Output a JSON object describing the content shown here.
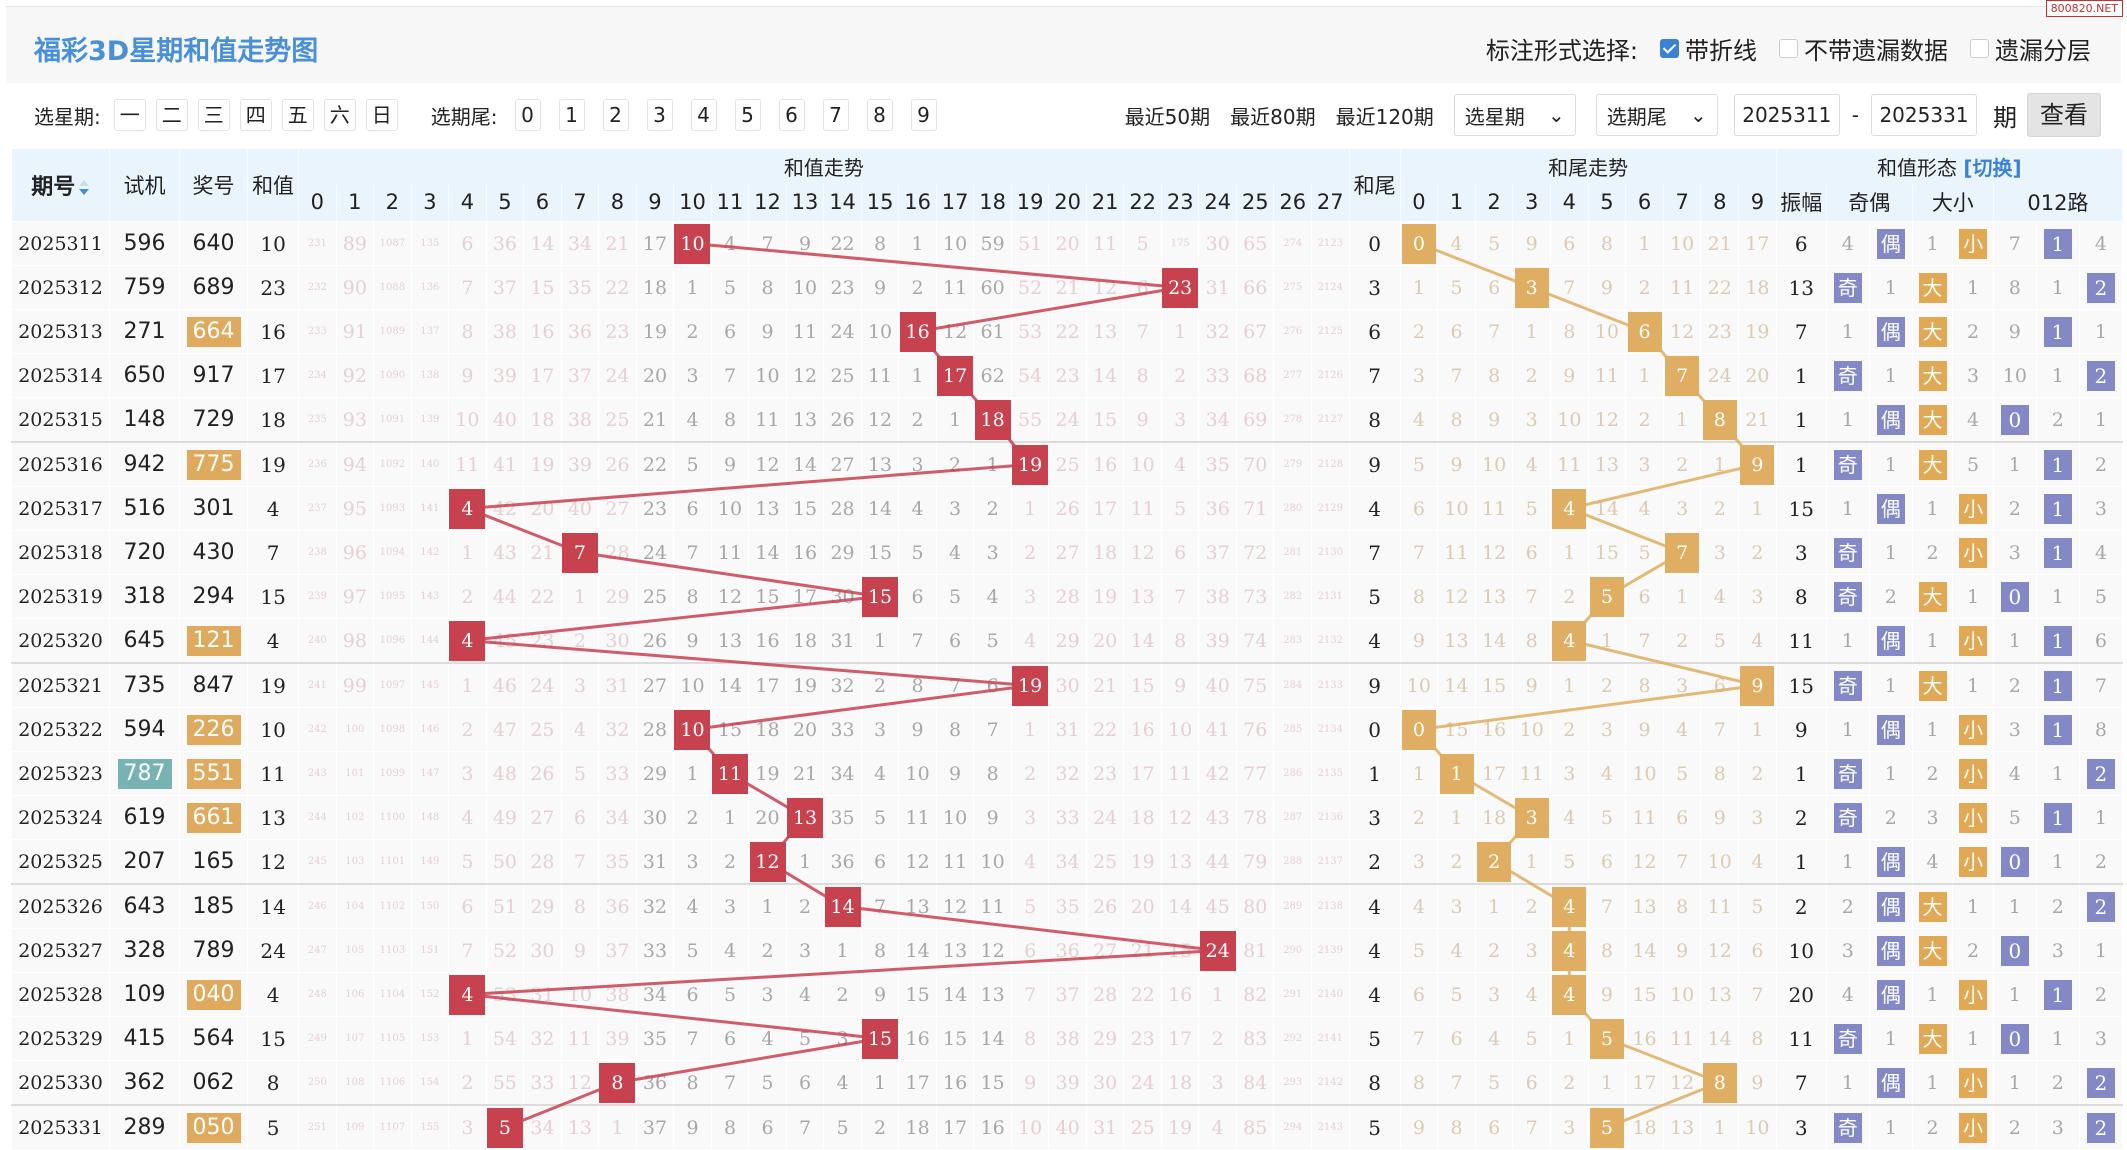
{
  "title": "福彩3D星期和值走势图",
  "watermark": "800820.NET",
  "mark_options": {
    "label": "标注形式选择:",
    "options": [
      {
        "label": "带折线",
        "checked": true
      },
      {
        "label": "不带遗漏数据",
        "checked": false
      },
      {
        "label": "遗漏分层",
        "checked": false
      }
    ]
  },
  "toolbar": {
    "weekday_label": "选星期:",
    "weekdays": [
      "一",
      "二",
      "三",
      "四",
      "五",
      "六",
      "日"
    ],
    "tail_label": "选期尾:",
    "tails": [
      "0",
      "1",
      "2",
      "3",
      "4",
      "5",
      "6",
      "7",
      "8",
      "9"
    ],
    "recent": [
      "最近50期",
      "最近80期",
      "最近120期"
    ],
    "weekday_select": "选星期",
    "tail_select": "选期尾",
    "from_issue": "2025311",
    "dash": "-",
    "to_issue": "2025331",
    "period_suffix": "期",
    "view_button": "查看"
  },
  "header": {
    "issue": "期号",
    "test": "试机",
    "draw": "奖号",
    "sum": "和值",
    "sum_trend": "和值走势",
    "tail": "和尾",
    "tail_trend": "和尾走势",
    "form": "和值形态",
    "switch": "[切换]",
    "amp": "振幅",
    "oe": "奇偶",
    "bs": "大小",
    "r012": "012路",
    "sum_cols": [
      "0",
      "1",
      "2",
      "3",
      "4",
      "5",
      "6",
      "7",
      "8",
      "9",
      "10",
      "11",
      "12",
      "13",
      "14",
      "15",
      "16",
      "17",
      "18",
      "19",
      "20",
      "21",
      "22",
      "23",
      "24",
      "25",
      "26",
      "27"
    ],
    "tail_cols": [
      "0",
      "1",
      "2",
      "3",
      "4",
      "5",
      "6",
      "7",
      "8",
      "9"
    ]
  },
  "colors": {
    "sum_hit": "#c8414f",
    "tail_hit": "#e0ae62",
    "badge_blue": "#8289c6",
    "badge_orange": "#e2a955",
    "group3": "#dfaa5e",
    "test_hl": "#78b3b3",
    "title": "#4a90d9"
  },
  "rows": [
    {
      "issue": "2025311",
      "test": "596",
      "draw": "640",
      "sum": 10,
      "tail": 0,
      "amp": 6,
      "sum_omit": [
        231,
        89,
        1087,
        135,
        6,
        36,
        14,
        34,
        21,
        17,
        0,
        4,
        7,
        9,
        22,
        8,
        1,
        10,
        59,
        51,
        20,
        11,
        5,
        175,
        30,
        65,
        274,
        2123
      ],
      "tail_omit": [
        0,
        4,
        5,
        9,
        6,
        8,
        1,
        10,
        21,
        17
      ],
      "oe": [
        4,
        "偶"
      ],
      "bs": [
        1,
        "小"
      ],
      "r012": [
        7,
        "1",
        4
      ]
    },
    {
      "issue": "2025312",
      "test": "759",
      "draw": "689",
      "sum": 23,
      "tail": 3,
      "amp": 13,
      "sum_omit": [
        232,
        90,
        1088,
        136,
        7,
        37,
        15,
        35,
        22,
        18,
        1,
        5,
        8,
        10,
        23,
        9,
        2,
        11,
        60,
        52,
        21,
        12,
        6,
        0,
        31,
        66,
        275,
        2124
      ],
      "tail_omit": [
        1,
        5,
        6,
        0,
        7,
        9,
        2,
        11,
        22,
        18
      ],
      "oe": [
        "奇",
        1
      ],
      "bs": [
        "大",
        1
      ],
      "r012": [
        8,
        1,
        "2"
      ]
    },
    {
      "issue": "2025313",
      "test": "271",
      "draw": "664",
      "draw_hl": true,
      "sum": 16,
      "tail": 6,
      "amp": 7,
      "sum_omit": [
        233,
        91,
        1089,
        137,
        8,
        38,
        16,
        36,
        23,
        19,
        2,
        6,
        9,
        11,
        24,
        10,
        0,
        12,
        61,
        53,
        22,
        13,
        7,
        1,
        32,
        67,
        276,
        2125
      ],
      "tail_omit": [
        2,
        6,
        7,
        1,
        8,
        10,
        0,
        12,
        23,
        19
      ],
      "oe": [
        1,
        "偶"
      ],
      "bs": [
        "大",
        2
      ],
      "r012": [
        9,
        "1",
        1
      ]
    },
    {
      "issue": "2025314",
      "test": "650",
      "draw": "917",
      "sum": 17,
      "tail": 7,
      "amp": 1,
      "sum_omit": [
        234,
        92,
        1090,
        138,
        9,
        39,
        17,
        37,
        24,
        20,
        3,
        7,
        10,
        12,
        25,
        11,
        1,
        0,
        62,
        54,
        23,
        14,
        8,
        2,
        33,
        68,
        277,
        2126
      ],
      "tail_omit": [
        3,
        7,
        8,
        2,
        9,
        11,
        1,
        0,
        24,
        20
      ],
      "oe": [
        "奇",
        1
      ],
      "bs": [
        "大",
        3
      ],
      "r012": [
        10,
        1,
        "2"
      ]
    },
    {
      "issue": "2025315",
      "test": "148",
      "draw": "729",
      "sum": 18,
      "tail": 8,
      "amp": 1,
      "sum_omit": [
        235,
        93,
        1091,
        139,
        10,
        40,
        18,
        38,
        25,
        21,
        4,
        8,
        11,
        13,
        26,
        12,
        2,
        1,
        0,
        55,
        24,
        15,
        9,
        3,
        34,
        69,
        278,
        2127
      ],
      "tail_omit": [
        4,
        8,
        9,
        3,
        10,
        12,
        2,
        1,
        0,
        21
      ],
      "oe": [
        1,
        "偶"
      ],
      "bs": [
        "大",
        4
      ],
      "r012": [
        "0",
        2,
        1
      ]
    },
    {
      "issue": "2025316",
      "test": "942",
      "draw": "775",
      "draw_hl": true,
      "sum": 19,
      "tail": 9,
      "amp": 1,
      "sum_omit": [
        236,
        94,
        1092,
        140,
        11,
        41,
        19,
        39,
        26,
        22,
        5,
        9,
        12,
        14,
        27,
        13,
        3,
        2,
        1,
        0,
        25,
        16,
        10,
        4,
        35,
        70,
        279,
        2128
      ],
      "tail_omit": [
        5,
        9,
        10,
        4,
        11,
        13,
        3,
        2,
        1,
        0
      ],
      "oe": [
        "奇",
        1
      ],
      "bs": [
        "大",
        5
      ],
      "r012": [
        1,
        "1",
        2
      ]
    },
    {
      "issue": "2025317",
      "test": "516",
      "draw": "301",
      "sum": 4,
      "tail": 4,
      "amp": 15,
      "sum_omit": [
        237,
        95,
        1093,
        141,
        0,
        42,
        20,
        40,
        27,
        23,
        6,
        10,
        13,
        15,
        28,
        14,
        4,
        3,
        2,
        1,
        26,
        17,
        11,
        5,
        36,
        71,
        280,
        2129
      ],
      "tail_omit": [
        6,
        10,
        11,
        5,
        0,
        14,
        4,
        3,
        2,
        1
      ],
      "oe": [
        1,
        "偶"
      ],
      "bs": [
        1,
        "小"
      ],
      "r012": [
        2,
        "1",
        3
      ]
    },
    {
      "issue": "2025318",
      "test": "720",
      "draw": "430",
      "sum": 7,
      "tail": 7,
      "amp": 3,
      "sum_omit": [
        238,
        96,
        1094,
        142,
        1,
        43,
        21,
        0,
        28,
        24,
        7,
        11,
        14,
        16,
        29,
        15,
        5,
        4,
        3,
        2,
        27,
        18,
        12,
        6,
        37,
        72,
        281,
        2130
      ],
      "tail_omit": [
        7,
        11,
        12,
        6,
        1,
        15,
        5,
        0,
        3,
        2
      ],
      "oe": [
        "奇",
        1
      ],
      "bs": [
        2,
        "小"
      ],
      "r012": [
        3,
        "1",
        4
      ]
    },
    {
      "issue": "2025319",
      "test": "318",
      "draw": "294",
      "sum": 15,
      "tail": 5,
      "amp": 8,
      "sum_omit": [
        239,
        97,
        1095,
        143,
        2,
        44,
        22,
        1,
        29,
        25,
        8,
        12,
        15,
        17,
        30,
        0,
        6,
        5,
        4,
        3,
        28,
        19,
        13,
        7,
        38,
        73,
        282,
        2131
      ],
      "tail_omit": [
        8,
        12,
        13,
        7,
        2,
        0,
        6,
        1,
        4,
        3
      ],
      "oe": [
        "奇",
        2
      ],
      "bs": [
        "大",
        1
      ],
      "r012": [
        "0",
        1,
        5
      ]
    },
    {
      "issue": "2025320",
      "test": "645",
      "draw": "121",
      "draw_hl": true,
      "sum": 4,
      "tail": 4,
      "amp": 11,
      "sum_omit": [
        240,
        98,
        1096,
        144,
        0,
        45,
        23,
        2,
        30,
        26,
        9,
        13,
        16,
        18,
        31,
        1,
        7,
        6,
        5,
        4,
        29,
        20,
        14,
        8,
        39,
        74,
        283,
        2132
      ],
      "tail_omit": [
        9,
        13,
        14,
        8,
        0,
        1,
        7,
        2,
        5,
        4
      ],
      "oe": [
        1,
        "偶"
      ],
      "bs": [
        1,
        "小"
      ],
      "r012": [
        1,
        "1",
        6
      ]
    },
    {
      "issue": "2025321",
      "test": "735",
      "draw": "847",
      "sum": 19,
      "tail": 9,
      "amp": 15,
      "sum_omit": [
        241,
        99,
        1097,
        145,
        1,
        46,
        24,
        3,
        31,
        27,
        10,
        14,
        17,
        19,
        32,
        2,
        8,
        7,
        6,
        0,
        30,
        21,
        15,
        9,
        40,
        75,
        284,
        2133
      ],
      "tail_omit": [
        10,
        14,
        15,
        9,
        1,
        2,
        8,
        3,
        6,
        0
      ],
      "oe": [
        "奇",
        1
      ],
      "bs": [
        "大",
        1
      ],
      "r012": [
        2,
        "1",
        7
      ]
    },
    {
      "issue": "2025322",
      "test": "594",
      "draw": "226",
      "draw_hl": true,
      "sum": 10,
      "tail": 0,
      "amp": 9,
      "sum_omit": [
        242,
        100,
        1098,
        146,
        2,
        47,
        25,
        4,
        32,
        28,
        0,
        15,
        18,
        20,
        33,
        3,
        9,
        8,
        7,
        1,
        31,
        22,
        16,
        10,
        41,
        76,
        285,
        2134
      ],
      "tail_omit": [
        0,
        15,
        16,
        10,
        2,
        3,
        9,
        4,
        7,
        1
      ],
      "oe": [
        1,
        "偶"
      ],
      "bs": [
        1,
        "小"
      ],
      "r012": [
        3,
        "1",
        8
      ]
    },
    {
      "issue": "2025323",
      "test": "787",
      "test_hl": true,
      "draw": "551",
      "draw_hl": true,
      "sum": 11,
      "tail": 1,
      "amp": 1,
      "sum_omit": [
        243,
        101,
        1099,
        147,
        3,
        48,
        26,
        5,
        33,
        29,
        1,
        0,
        19,
        21,
        34,
        4,
        10,
        9,
        8,
        2,
        32,
        23,
        17,
        11,
        42,
        77,
        286,
        2135
      ],
      "tail_omit": [
        1,
        0,
        17,
        11,
        3,
        4,
        10,
        5,
        8,
        2
      ],
      "oe": [
        "奇",
        1
      ],
      "bs": [
        2,
        "小"
      ],
      "r012": [
        4,
        1,
        "2"
      ]
    },
    {
      "issue": "2025324",
      "test": "619",
      "draw": "661",
      "draw_hl": true,
      "sum": 13,
      "tail": 3,
      "amp": 2,
      "sum_omit": [
        244,
        102,
        1100,
        148,
        4,
        49,
        27,
        6,
        34,
        30,
        2,
        1,
        20,
        0,
        35,
        5,
        11,
        10,
        9,
        3,
        33,
        24,
        18,
        12,
        43,
        78,
        287,
        2136
      ],
      "tail_omit": [
        2,
        1,
        18,
        0,
        4,
        5,
        11,
        6,
        9,
        3
      ],
      "oe": [
        "奇",
        2
      ],
      "bs": [
        3,
        "小"
      ],
      "r012": [
        5,
        "1",
        1
      ]
    },
    {
      "issue": "2025325",
      "test": "207",
      "draw": "165",
      "sum": 12,
      "tail": 2,
      "amp": 1,
      "sum_omit": [
        245,
        103,
        1101,
        149,
        5,
        50,
        28,
        7,
        35,
        31,
        3,
        2,
        0,
        1,
        36,
        6,
        12,
        11,
        10,
        4,
        34,
        25,
        19,
        13,
        44,
        79,
        288,
        2137
      ],
      "tail_omit": [
        3,
        2,
        0,
        1,
        5,
        6,
        12,
        7,
        10,
        4
      ],
      "oe": [
        1,
        "偶"
      ],
      "bs": [
        4,
        "小"
      ],
      "r012": [
        "0",
        1,
        2
      ]
    },
    {
      "issue": "2025326",
      "test": "643",
      "draw": "185",
      "sum": 14,
      "tail": 4,
      "amp": 2,
      "sum_omit": [
        246,
        104,
        1102,
        150,
        6,
        51,
        29,
        8,
        36,
        32,
        4,
        3,
        1,
        2,
        0,
        7,
        13,
        12,
        11,
        5,
        35,
        26,
        20,
        14,
        45,
        80,
        289,
        2138
      ],
      "tail_omit": [
        4,
        3,
        1,
        2,
        0,
        7,
        13,
        8,
        11,
        5
      ],
      "oe": [
        2,
        "偶"
      ],
      "bs": [
        "大",
        1
      ],
      "r012": [
        1,
        2,
        "2"
      ]
    },
    {
      "issue": "2025327",
      "test": "328",
      "draw": "789",
      "sum": 24,
      "tail": 4,
      "amp": 10,
      "sum_omit": [
        247,
        105,
        1103,
        151,
        7,
        52,
        30,
        9,
        37,
        33,
        5,
        4,
        2,
        3,
        1,
        8,
        14,
        13,
        12,
        6,
        36,
        27,
        21,
        15,
        0,
        81,
        290,
        2139
      ],
      "tail_omit": [
        5,
        4,
        2,
        3,
        0,
        8,
        14,
        9,
        12,
        6
      ],
      "oe": [
        3,
        "偶"
      ],
      "bs": [
        "大",
        2
      ],
      "r012": [
        "0",
        3,
        1
      ]
    },
    {
      "issue": "2025328",
      "test": "109",
      "draw": "040",
      "draw_hl": true,
      "sum": 4,
      "tail": 4,
      "amp": 20,
      "sum_omit": [
        248,
        106,
        1104,
        152,
        0,
        53,
        31,
        10,
        38,
        34,
        6,
        5,
        3,
        4,
        2,
        9,
        15,
        14,
        13,
        7,
        37,
        28,
        22,
        16,
        1,
        82,
        291,
        2140
      ],
      "tail_omit": [
        6,
        5,
        3,
        4,
        0,
        9,
        15,
        10,
        13,
        7
      ],
      "oe": [
        4,
        "偶"
      ],
      "bs": [
        1,
        "小"
      ],
      "r012": [
        1,
        "1",
        2
      ]
    },
    {
      "issue": "2025329",
      "test": "415",
      "draw": "564",
      "sum": 15,
      "tail": 5,
      "amp": 11,
      "sum_omit": [
        249,
        107,
        1105,
        153,
        1,
        54,
        32,
        11,
        39,
        35,
        7,
        6,
        4,
        5,
        3,
        0,
        16,
        15,
        14,
        8,
        38,
        29,
        23,
        17,
        2,
        83,
        292,
        2141
      ],
      "tail_omit": [
        7,
        6,
        4,
        5,
        1,
        0,
        16,
        11,
        14,
        8
      ],
      "oe": [
        "奇",
        1
      ],
      "bs": [
        "大",
        1
      ],
      "r012": [
        "0",
        1,
        3
      ]
    },
    {
      "issue": "2025330",
      "test": "362",
      "draw": "062",
      "sum": 8,
      "tail": 8,
      "amp": 7,
      "sum_omit": [
        250,
        108,
        1106,
        154,
        2,
        55,
        33,
        12,
        0,
        36,
        8,
        7,
        5,
        6,
        4,
        1,
        17,
        16,
        15,
        9,
        39,
        30,
        24,
        18,
        3,
        84,
        293,
        2142
      ],
      "tail_omit": [
        8,
        7,
        5,
        6,
        2,
        1,
        17,
        12,
        0,
        9
      ],
      "oe": [
        1,
        "偶"
      ],
      "bs": [
        1,
        "小"
      ],
      "r012": [
        1,
        2,
        "2"
      ]
    },
    {
      "issue": "2025331",
      "test": "289",
      "draw": "050",
      "draw_hl": true,
      "sum": 5,
      "tail": 5,
      "amp": 3,
      "sum_omit": [
        251,
        109,
        1107,
        155,
        3,
        0,
        34,
        13,
        1,
        37,
        9,
        8,
        6,
        7,
        5,
        2,
        18,
        17,
        16,
        10,
        40,
        31,
        25,
        19,
        4,
        85,
        294,
        2143
      ],
      "tail_omit": [
        9,
        8,
        6,
        7,
        3,
        0,
        18,
        13,
        1,
        10
      ],
      "oe": [
        "奇",
        1
      ],
      "bs": [
        2,
        "小"
      ],
      "r012": [
        2,
        3,
        "2"
      ]
    }
  ]
}
